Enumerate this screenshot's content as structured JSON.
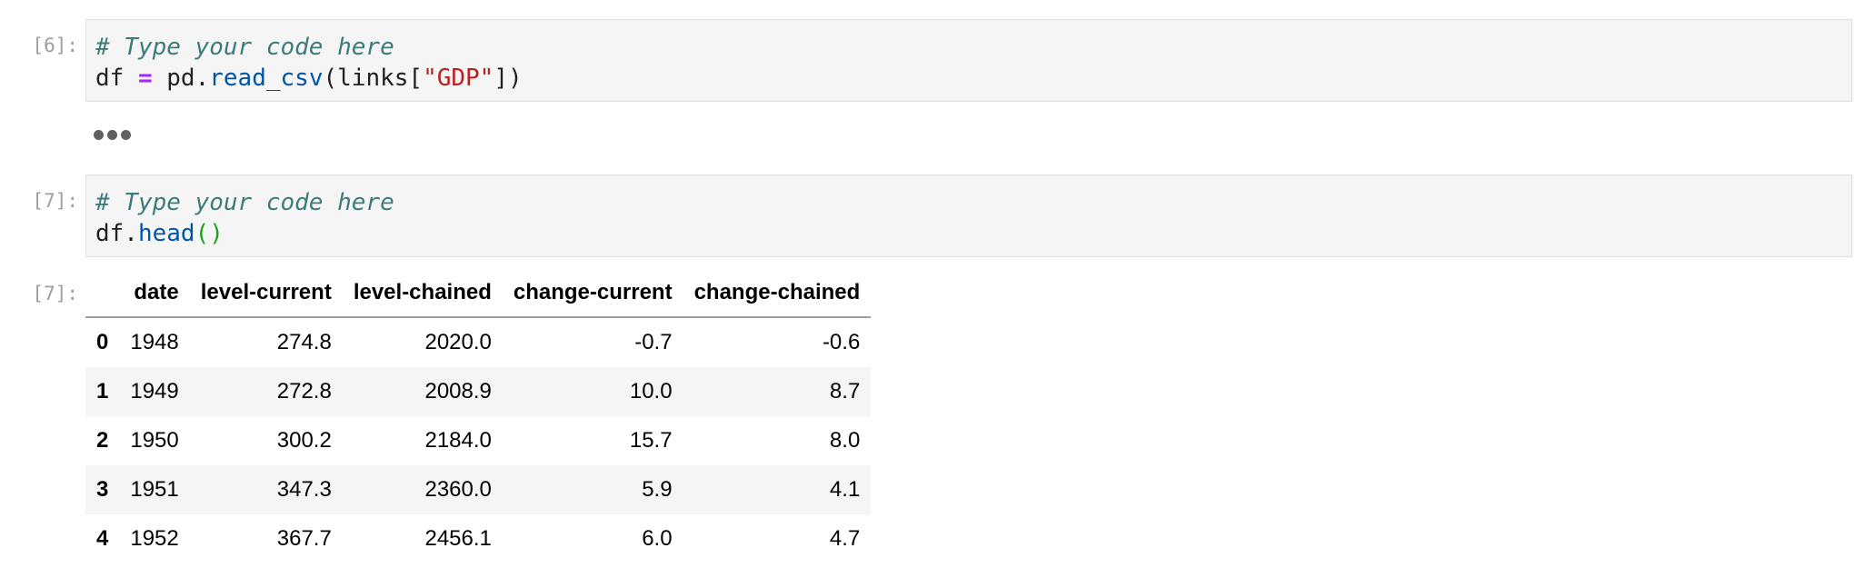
{
  "cells": [
    {
      "prompt": "[6]:",
      "lines": [
        [
          {
            "t": "# Type your code here",
            "k": "comment"
          }
        ],
        [
          {
            "t": "df ",
            "k": "plain"
          },
          {
            "t": "=",
            "k": "op"
          },
          {
            "t": " pd.",
            "k": "plain"
          },
          {
            "t": "read_csv",
            "k": "func"
          },
          {
            "t": "(links[",
            "k": "plain"
          },
          {
            "t": "\"GDP\"",
            "k": "str"
          },
          {
            "t": "])",
            "k": "plain"
          }
        ]
      ]
    },
    {
      "prompt": "[7]:",
      "lines": [
        [
          {
            "t": "# Type your code here",
            "k": "comment"
          }
        ],
        [
          {
            "t": "df.",
            "k": "plain"
          },
          {
            "t": "head",
            "k": "func"
          },
          {
            "t": "()",
            "k": "paren"
          }
        ]
      ]
    }
  ],
  "output": {
    "prompt": "[7]:",
    "table": {
      "columns": [
        "",
        "date",
        "level-current",
        "level-chained",
        "change-current",
        "change-chained"
      ],
      "rows": [
        [
          "0",
          "1948",
          "274.8",
          "2020.0",
          "-0.7",
          "-0.6"
        ],
        [
          "1",
          "1949",
          "272.8",
          "2008.9",
          "10.0",
          "8.7"
        ],
        [
          "2",
          "1950",
          "300.2",
          "2184.0",
          "15.7",
          "8.0"
        ],
        [
          "3",
          "1951",
          "347.3",
          "2360.0",
          "5.9",
          "4.1"
        ],
        [
          "4",
          "1952",
          "367.7",
          "2456.1",
          "6.0",
          "4.7"
        ]
      ]
    }
  }
}
